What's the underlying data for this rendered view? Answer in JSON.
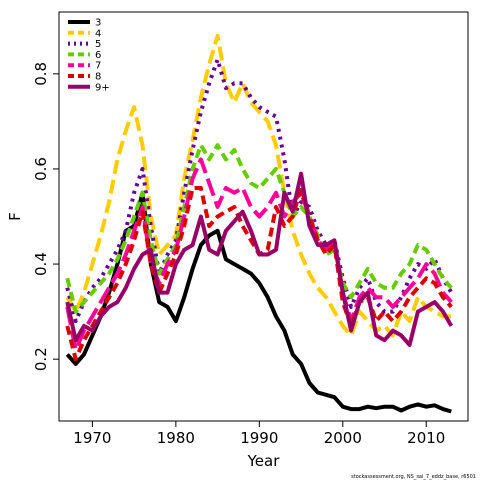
{
  "chart_data": {
    "type": "line",
    "xlabel": "Year",
    "ylabel": "F",
    "xlim": [
      1966,
      2015
    ],
    "ylim": [
      0.07,
      0.93
    ],
    "x_ticks": [
      1970,
      1980,
      1990,
      2000,
      2010
    ],
    "y_ticks": [
      0.2,
      0.4,
      0.6,
      0.8
    ],
    "legend_position": "top-left",
    "footer": "stockassessment.org, NS_sai_7_eddz_base, r6501",
    "years": [
      1967,
      1968,
      1969,
      1970,
      1971,
      1972,
      1973,
      1974,
      1975,
      1976,
      1977,
      1978,
      1979,
      1980,
      1981,
      1982,
      1983,
      1984,
      1985,
      1986,
      1987,
      1988,
      1989,
      1990,
      1991,
      1992,
      1993,
      1994,
      1995,
      1996,
      1997,
      1998,
      1999,
      2000,
      2001,
      2002,
      2003,
      2004,
      2005,
      2006,
      2007,
      2008,
      2009,
      2010,
      2011,
      2012,
      2013
    ],
    "series": [
      {
        "name": "3",
        "color": "#000000",
        "dash": "solid",
        "values": [
          0.21,
          0.19,
          0.21,
          0.25,
          0.29,
          0.34,
          0.4,
          0.47,
          0.48,
          0.55,
          0.4,
          0.32,
          0.31,
          0.28,
          0.33,
          0.39,
          0.44,
          0.46,
          0.47,
          0.41,
          0.4,
          0.39,
          0.38,
          0.36,
          0.33,
          0.29,
          0.26,
          0.21,
          0.19,
          0.15,
          0.13,
          0.125,
          0.12,
          0.1,
          0.095,
          0.095,
          0.1,
          0.097,
          0.1,
          0.1,
          0.092,
          0.1,
          0.105,
          0.1,
          0.103,
          0.095,
          0.09
        ]
      },
      {
        "name": "4",
        "color": "#ffcc00",
        "dash": "long",
        "values": [
          0.33,
          0.3,
          0.34,
          0.4,
          0.46,
          0.53,
          0.62,
          0.68,
          0.73,
          0.65,
          0.5,
          0.42,
          0.44,
          0.46,
          0.58,
          0.66,
          0.75,
          0.82,
          0.88,
          0.78,
          0.74,
          0.78,
          0.74,
          0.72,
          0.7,
          0.65,
          0.55,
          0.47,
          0.42,
          0.38,
          0.35,
          0.33,
          0.3,
          0.27,
          0.25,
          0.3,
          0.28,
          0.26,
          0.27,
          0.25,
          0.3,
          0.28,
          0.33,
          0.31,
          0.3,
          0.29,
          0.29
        ]
      },
      {
        "name": "5",
        "color": "#660099",
        "dash": "dot",
        "values": [
          0.35,
          0.28,
          0.32,
          0.35,
          0.37,
          0.4,
          0.43,
          0.47,
          0.55,
          0.6,
          0.48,
          0.38,
          0.42,
          0.45,
          0.55,
          0.64,
          0.72,
          0.78,
          0.83,
          0.77,
          0.78,
          0.78,
          0.75,
          0.73,
          0.72,
          0.71,
          0.62,
          0.5,
          0.53,
          0.52,
          0.47,
          0.44,
          0.45,
          0.37,
          0.31,
          0.35,
          0.37,
          0.32,
          0.3,
          0.3,
          0.33,
          0.37,
          0.4,
          0.39,
          0.41,
          0.37,
          0.34
        ]
      },
      {
        "name": "6",
        "color": "#66cc00",
        "dash": "dash",
        "values": [
          0.37,
          0.3,
          0.32,
          0.34,
          0.36,
          0.38,
          0.41,
          0.45,
          0.5,
          0.55,
          0.45,
          0.38,
          0.41,
          0.44,
          0.52,
          0.6,
          0.65,
          0.62,
          0.65,
          0.62,
          0.64,
          0.6,
          0.57,
          0.56,
          0.58,
          0.6,
          0.55,
          0.5,
          0.52,
          0.5,
          0.46,
          0.42,
          0.43,
          0.36,
          0.33,
          0.36,
          0.39,
          0.36,
          0.35,
          0.35,
          0.38,
          0.4,
          0.44,
          0.43,
          0.4,
          0.37,
          0.35
        ]
      },
      {
        "name": "7",
        "color": "#ff0099",
        "dash": "longdash",
        "values": [
          0.31,
          0.22,
          0.26,
          0.29,
          0.32,
          0.35,
          0.38,
          0.42,
          0.47,
          0.52,
          0.4,
          0.36,
          0.4,
          0.43,
          0.5,
          0.58,
          0.62,
          0.57,
          0.52,
          0.56,
          0.55,
          0.56,
          0.52,
          0.5,
          0.52,
          0.55,
          0.5,
          0.53,
          0.55,
          0.5,
          0.45,
          0.43,
          0.45,
          0.34,
          0.28,
          0.33,
          0.35,
          0.33,
          0.33,
          0.31,
          0.33,
          0.35,
          0.37,
          0.4,
          0.38,
          0.34,
          0.32
        ]
      },
      {
        "name": "8",
        "color": "#dd0000",
        "dash": "dash",
        "values": [
          0.27,
          0.2,
          0.24,
          0.27,
          0.3,
          0.33,
          0.36,
          0.4,
          0.45,
          0.51,
          0.4,
          0.34,
          0.38,
          0.42,
          0.48,
          0.56,
          0.56,
          0.48,
          0.5,
          0.51,
          0.52,
          0.48,
          0.45,
          0.42,
          0.43,
          0.52,
          0.48,
          0.5,
          0.56,
          0.5,
          0.45,
          0.42,
          0.44,
          0.32,
          0.27,
          0.32,
          0.33,
          0.28,
          0.3,
          0.28,
          0.3,
          0.33,
          0.35,
          0.37,
          0.36,
          0.33,
          0.31
        ]
      },
      {
        "name": "9+",
        "color": "#990066",
        "dash": "solid",
        "values": [
          0.32,
          0.24,
          0.27,
          0.26,
          0.29,
          0.31,
          0.32,
          0.35,
          0.39,
          0.42,
          0.43,
          0.34,
          0.34,
          0.4,
          0.43,
          0.44,
          0.5,
          0.43,
          0.42,
          0.47,
          0.49,
          0.51,
          0.47,
          0.42,
          0.42,
          0.43,
          0.55,
          0.51,
          0.59,
          0.48,
          0.44,
          0.44,
          0.45,
          0.34,
          0.26,
          0.32,
          0.34,
          0.25,
          0.24,
          0.26,
          0.25,
          0.23,
          0.3,
          0.31,
          0.32,
          0.3,
          0.27
        ]
      }
    ]
  }
}
